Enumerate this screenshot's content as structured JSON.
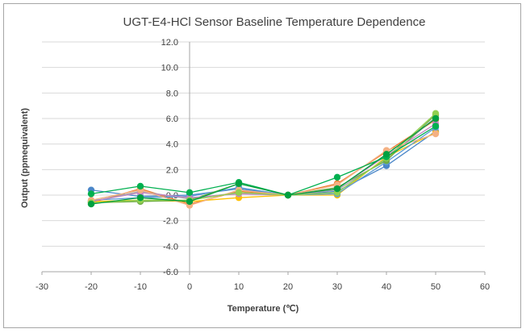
{
  "chart_data": {
    "type": "line",
    "title": "UGT-E4-HCl  Sensor Baseline Temperature  Dependence",
    "xlabel": "Temperature (℃)",
    "ylabel": "Output (ppmequivalent)",
    "xlim": [
      -30,
      60
    ],
    "ylim": [
      -6.0,
      12.0
    ],
    "x_ticks": [
      "-30",
      "-20",
      "-10",
      "0",
      "10",
      "20",
      "30",
      "40",
      "50",
      "60"
    ],
    "y_ticks": [
      "-6.0",
      "-4.0",
      "-2.0",
      "0.0",
      "2.0",
      "4.0",
      "6.0",
      "8.0",
      "10.0",
      "12.0"
    ],
    "grid": "horizontal",
    "legend": "none",
    "x": [
      -20,
      -10,
      0,
      10,
      20,
      30,
      40,
      50
    ],
    "series": [
      {
        "color": "#4a86c8",
        "values": [
          0.4,
          -0.1,
          0.0,
          0.5,
          0.0,
          0.3,
          2.3,
          5.0
        ]
      },
      {
        "color": "#ed7d31",
        "values": [
          -0.6,
          0.5,
          -0.7,
          0.3,
          0.0,
          0.9,
          3.4,
          5.9
        ]
      },
      {
        "color": "#a5a5a5",
        "values": [
          -0.5,
          0.3,
          -0.3,
          0.2,
          0.0,
          0.4,
          2.8,
          6.1
        ]
      },
      {
        "color": "#ffc000",
        "values": [
          -0.5,
          -0.4,
          -0.5,
          -0.2,
          0.0,
          0.0,
          3.0,
          4.9
        ]
      },
      {
        "color": "#5b9bd5",
        "values": [
          -0.4,
          -0.2,
          -0.1,
          0.6,
          0.0,
          0.1,
          2.6,
          5.3
        ]
      },
      {
        "color": "#70ad47",
        "values": [
          -0.6,
          -0.5,
          -0.4,
          0.9,
          0.0,
          0.6,
          2.7,
          6.3
        ]
      },
      {
        "color": "#c285c2",
        "values": [
          -0.5,
          0.2,
          -0.2,
          0.1,
          0.0,
          0.5,
          3.1,
          5.6
        ]
      },
      {
        "color": "#f4b183",
        "values": [
          -0.4,
          0.4,
          -0.8,
          0.4,
          0.0,
          0.8,
          3.5,
          4.8
        ]
      },
      {
        "color": "#92d050",
        "values": [
          -0.6,
          -0.4,
          -0.4,
          0.2,
          0.0,
          0.2,
          2.9,
          6.4
        ]
      },
      {
        "color": "#00b050",
        "values": [
          0.1,
          0.7,
          0.2,
          1.0,
          0.0,
          1.4,
          3.0,
          5.4
        ]
      },
      {
        "color": "#00a040",
        "values": [
          -0.7,
          -0.2,
          -0.5,
          0.9,
          0.0,
          0.5,
          3.2,
          6.0
        ]
      }
    ]
  }
}
